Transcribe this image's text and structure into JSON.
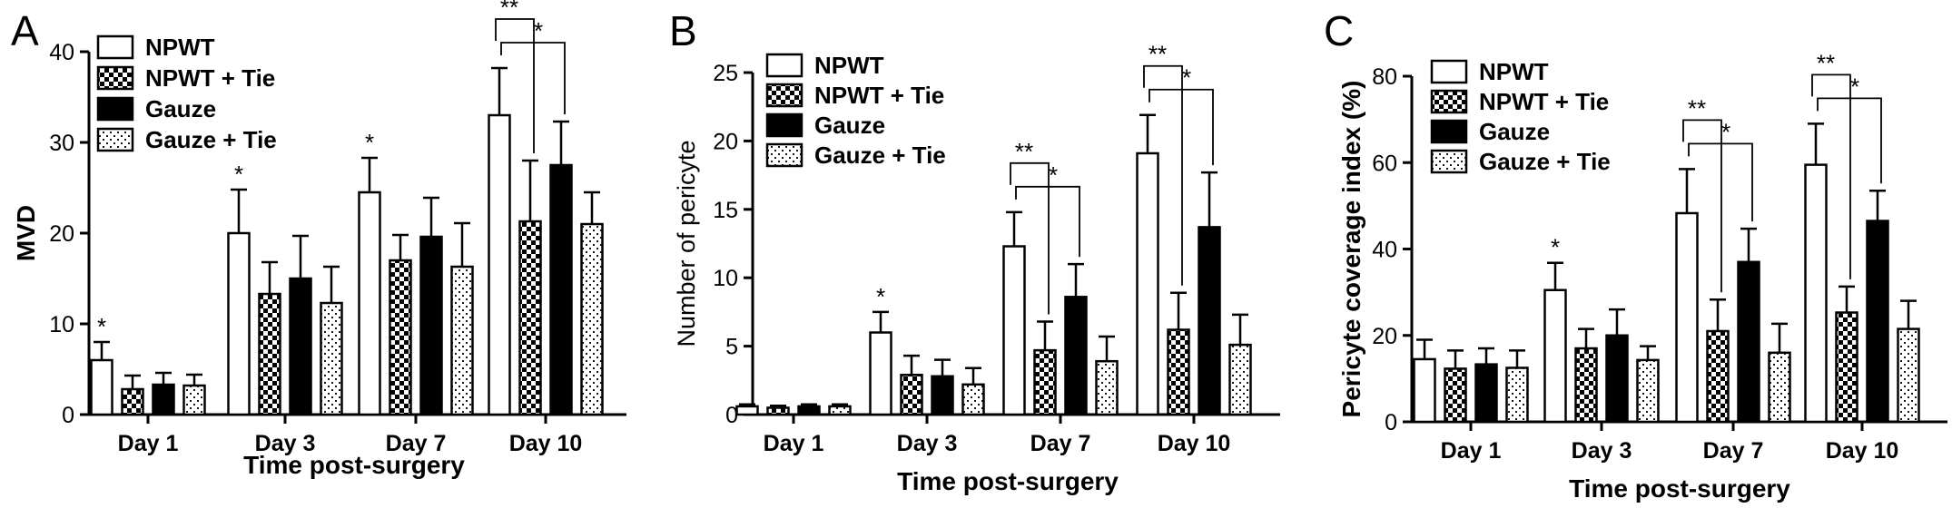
{
  "colors": {
    "ink": "#000000",
    "paper": "#ffffff"
  },
  "legend_fills": [
    "white",
    "checker",
    "solid-black",
    "dots"
  ],
  "chart_data": [
    {
      "panel": "A",
      "type": "bar",
      "categories": [
        "Day 1",
        "Day 3",
        "Day 7",
        "Day 10"
      ],
      "series": [
        {
          "name": "NPWT",
          "values": [
            6.0,
            20.0,
            24.5,
            33.0
          ],
          "errors": [
            2.0,
            4.8,
            3.8,
            5.2
          ]
        },
        {
          "name": "NPWT + Tie",
          "values": [
            2.8,
            13.3,
            17.0,
            21.3
          ],
          "errors": [
            1.5,
            3.5,
            2.8,
            6.7
          ]
        },
        {
          "name": "Gauze",
          "values": [
            3.3,
            15.0,
            19.6,
            27.5
          ],
          "errors": [
            1.3,
            4.7,
            4.3,
            4.8
          ]
        },
        {
          "name": "Gauze + Tie",
          "values": [
            3.2,
            12.3,
            16.3,
            21.0
          ],
          "errors": [
            1.2,
            4.0,
            4.8,
            3.5
          ]
        }
      ],
      "xlabel": "Time post-surgery",
      "ylabel": "MVD",
      "ylim": [
        0,
        40
      ],
      "yticks": [
        0,
        10,
        20,
        30,
        40
      ],
      "legend_position": "top-left",
      "annotations": [
        {
          "category": 0,
          "series": 0,
          "text": "*"
        },
        {
          "category": 1,
          "series": 0,
          "text": "*"
        },
        {
          "category": 2,
          "series": 0,
          "text": "*"
        }
      ],
      "brackets": [
        {
          "category": 3,
          "from_series": 0,
          "to_series": 1,
          "text": "**"
        },
        {
          "category": 3,
          "from_series": 0,
          "to_series": 2,
          "text": "*"
        }
      ]
    },
    {
      "panel": "B",
      "type": "bar",
      "categories": [
        "Day 1",
        "Day 3",
        "Day 7",
        "Day 10"
      ],
      "series": [
        {
          "name": "NPWT",
          "values": [
            0.6,
            6.0,
            12.3,
            19.1
          ],
          "errors": [
            0.15,
            1.5,
            2.5,
            2.8
          ]
        },
        {
          "name": "NPWT + Tie",
          "values": [
            0.5,
            2.9,
            4.7,
            6.2
          ],
          "errors": [
            0.15,
            1.4,
            2.1,
            2.7
          ]
        },
        {
          "name": "Gauze",
          "values": [
            0.6,
            2.8,
            8.6,
            13.7
          ],
          "errors": [
            0.15,
            1.2,
            2.4,
            4.0
          ]
        },
        {
          "name": "Gauze + Tie",
          "values": [
            0.6,
            2.2,
            3.9,
            5.1
          ],
          "errors": [
            0.15,
            1.2,
            1.8,
            2.2
          ]
        }
      ],
      "xlabel": "Time post-surgery",
      "ylabel": "Number of pericyte",
      "ylim": [
        0,
        25
      ],
      "yticks": [
        0,
        5,
        10,
        15,
        20,
        25
      ],
      "legend_position": "top-left",
      "annotations": [
        {
          "category": 1,
          "series": 0,
          "text": "*"
        }
      ],
      "brackets": [
        {
          "category": 2,
          "from_series": 0,
          "to_series": 1,
          "text": "**"
        },
        {
          "category": 2,
          "from_series": 0,
          "to_series": 2,
          "text": "*"
        },
        {
          "category": 3,
          "from_series": 0,
          "to_series": 1,
          "text": "**"
        },
        {
          "category": 3,
          "from_series": 0,
          "to_series": 2,
          "text": "*"
        }
      ]
    },
    {
      "panel": "C",
      "type": "bar",
      "categories": [
        "Day 1",
        "Day 3",
        "Day 7",
        "Day 10"
      ],
      "series": [
        {
          "name": "NPWT",
          "values": [
            14.5,
            30.5,
            48.3,
            59.5
          ],
          "errors": [
            4.5,
            6.3,
            10.2,
            9.5
          ]
        },
        {
          "name": "NPWT + Tie",
          "values": [
            12.3,
            17.0,
            21.0,
            25.3
          ],
          "errors": [
            4.2,
            4.5,
            7.3,
            6.0
          ]
        },
        {
          "name": "Gauze",
          "values": [
            13.3,
            20.0,
            37.0,
            46.5
          ],
          "errors": [
            3.7,
            6.0,
            7.7,
            7.0
          ]
        },
        {
          "name": "Gauze + Tie",
          "values": [
            12.5,
            14.3,
            16.0,
            21.5
          ],
          "errors": [
            4.0,
            3.2,
            6.7,
            6.5
          ]
        }
      ],
      "xlabel": "Time post-surgery",
      "ylabel": "Pericyte coverage index (%)",
      "ylim": [
        0,
        80
      ],
      "yticks": [
        0,
        20,
        40,
        60,
        80
      ],
      "legend_position": "top-left",
      "annotations": [
        {
          "category": 1,
          "series": 0,
          "text": "*"
        }
      ],
      "brackets": [
        {
          "category": 2,
          "from_series": 0,
          "to_series": 1,
          "text": "**"
        },
        {
          "category": 2,
          "from_series": 0,
          "to_series": 2,
          "text": "*"
        },
        {
          "category": 3,
          "from_series": 0,
          "to_series": 1,
          "text": "**"
        },
        {
          "category": 3,
          "from_series": 0,
          "to_series": 2,
          "text": "*"
        }
      ]
    }
  ]
}
